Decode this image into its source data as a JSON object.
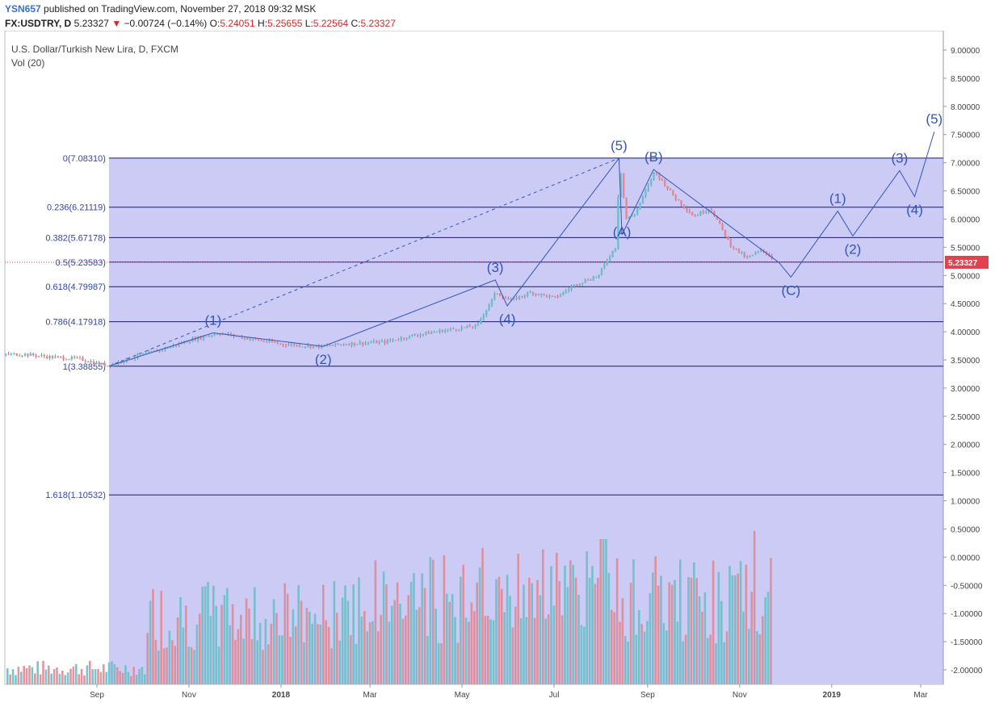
{
  "header": {
    "user": "YSN657",
    "published": "published on TradingView.com, November 27, 2018 09:32 MSK",
    "symbol": "FX:USDTRY, D",
    "last": "5.23327",
    "change": "−0.00724 (−0.14%)",
    "open_label": "O:",
    "open": "5.24051",
    "high_label": "H:",
    "high": "5.25655",
    "low_label": "L:",
    "low": "5.22564",
    "close_label": "C:",
    "close": "5.23327"
  },
  "legend": {
    "title": "U.S. Dollar/Turkish New Lira, D, FXCM",
    "volume": "Vol (20)"
  },
  "colors": {
    "up": "#6bbfc7",
    "down": "#e08a96",
    "fib_fill": "#c8c8f5",
    "fib_line": "#1a1a6e",
    "wave": "#3355bb",
    "price_tag": "#e0424f"
  },
  "chart_data": {
    "type": "candlestick",
    "x_ticks": [
      "Sep",
      "Nov",
      "2018",
      "Mar",
      "May",
      "Jul",
      "Sep",
      "Nov",
      "2019",
      "Mar"
    ],
    "y_ticks": [
      "9.00000",
      "8.50000",
      "8.00000",
      "7.50000",
      "7.00000",
      "6.50000",
      "6.00000",
      "5.50000",
      "5.00000",
      "4.50000",
      "4.00000",
      "3.50000",
      "3.00000",
      "2.50000",
      "2.00000",
      "1.50000",
      "1.00000",
      "0.50000",
      "0.00000",
      "-0.50000",
      "-1.00000",
      "-1.50000",
      "-2.00000"
    ],
    "ylim": [
      -2.2,
      9.0
    ],
    "last_price": "5.23327",
    "fib_levels": [
      {
        "label": "0(7.08310)",
        "value": 7.0831
      },
      {
        "label": "0.236(6.21119)",
        "value": 6.21119
      },
      {
        "label": "0.382(5.67178)",
        "value": 5.67178
      },
      {
        "label": "0.5(5.23583)",
        "value": 5.23583
      },
      {
        "label": "0.618(4.79987)",
        "value": 4.79987
      },
      {
        "label": "0.786(4.17918)",
        "value": 4.17918
      },
      {
        "label": "1(3.38855)",
        "value": 3.38855
      },
      {
        "label": "1.618(1.10532)",
        "value": 1.10532
      }
    ],
    "price_path": [
      [
        "2017-07-15",
        3.6
      ],
      [
        "2017-08-01",
        3.55
      ],
      [
        "2017-08-20",
        3.52
      ],
      [
        "2017-09-07",
        3.4
      ],
      [
        "2017-09-25",
        3.55
      ],
      [
        "2017-10-15",
        3.7
      ],
      [
        "2017-11-01",
        3.85
      ],
      [
        "2017-11-20",
        3.98
      ],
      [
        "2017-12-10",
        3.88
      ],
      [
        "2018-01-01",
        3.78
      ],
      [
        "2018-01-25",
        3.74
      ],
      [
        "2018-02-15",
        3.79
      ],
      [
        "2018-03-10",
        3.82
      ],
      [
        "2018-04-01",
        3.95
      ],
      [
        "2018-04-25",
        4.05
      ],
      [
        "2018-05-10",
        4.1
      ],
      [
        "2018-05-23",
        4.7
      ],
      [
        "2018-06-01",
        4.55
      ],
      [
        "2018-06-15",
        4.7
      ],
      [
        "2018-07-01",
        4.6
      ],
      [
        "2018-07-15",
        4.85
      ],
      [
        "2018-07-30",
        5.0
      ],
      [
        "2018-08-05",
        5.3
      ],
      [
        "2018-08-10",
        5.5
      ],
      [
        "2018-08-13",
        7.0
      ],
      [
        "2018-08-17",
        6.0
      ],
      [
        "2018-08-23",
        6.1
      ],
      [
        "2018-09-01",
        6.6
      ],
      [
        "2018-09-05",
        6.85
      ],
      [
        "2018-09-18",
        6.4
      ],
      [
        "2018-10-01",
        6.05
      ],
      [
        "2018-10-12",
        6.2
      ],
      [
        "2018-10-25",
        5.55
      ],
      [
        "2018-11-05",
        5.3
      ],
      [
        "2018-11-15",
        5.45
      ],
      [
        "2018-11-27",
        5.23
      ]
    ],
    "waves": [
      {
        "name": "impulse-1",
        "points": [
          [
            "2017-09-09",
            3.39
          ],
          [
            "2017-11-17",
            3.98
          ]
        ]
      },
      {
        "name": "impulse-2",
        "points": [
          [
            "2018-01-29",
            3.74
          ]
        ]
      },
      {
        "name": "impulse-3",
        "points": [
          [
            "2018-05-23",
            4.92
          ]
        ]
      },
      {
        "name": "impulse-4",
        "points": [
          [
            "2018-05-31",
            4.46
          ]
        ]
      },
      {
        "name": "impulse-5",
        "points": [
          [
            "2018-08-13",
            7.08
          ]
        ]
      }
    ],
    "wave_labels": [
      {
        "text": "(1)",
        "x": "2017-11-17",
        "y": 3.98
      },
      {
        "text": "(2)",
        "x": "2018-01-29",
        "y": 3.74
      },
      {
        "text": "(3)",
        "x": "2018-05-23",
        "y": 4.92
      },
      {
        "text": "(4)",
        "x": "2018-05-31",
        "y": 4.46
      },
      {
        "text": "(5)",
        "x": "2018-08-13",
        "y": 7.08
      },
      {
        "text": "(A)",
        "x": "2018-08-15",
        "y": 5.72
      },
      {
        "text": "(B)",
        "x": "2018-09-05",
        "y": 6.88
      },
      {
        "text": "(C)",
        "x": "2018-12-05",
        "y": 4.97
      },
      {
        "text": "(1)",
        "x": "2019-01-05",
        "y": 6.14
      },
      {
        "text": "(2)",
        "x": "2019-01-15",
        "y": 5.7
      },
      {
        "text": "(3)",
        "x": "2019-02-15",
        "y": 6.86
      },
      {
        "text": "(4)",
        "x": "2019-02-25",
        "y": 6.4
      },
      {
        "text": "(5)",
        "x": "2019-03-10",
        "y": 7.55
      }
    ],
    "projection": [
      [
        "2017-09-09",
        3.39
      ],
      [
        "2017-11-17",
        3.98
      ],
      [
        "2018-01-29",
        3.74
      ],
      [
        "2018-05-23",
        4.92
      ],
      [
        "2018-05-31",
        4.46
      ],
      [
        "2018-08-13",
        7.08
      ],
      [
        "2018-08-15",
        5.72
      ],
      [
        "2018-09-05",
        6.88
      ],
      [
        "2018-11-27",
        5.23
      ],
      [
        "2018-12-05",
        4.97
      ],
      [
        "2019-01-05",
        6.14
      ],
      [
        "2019-01-15",
        5.7
      ],
      [
        "2019-02-15",
        6.86
      ],
      [
        "2019-02-25",
        6.4
      ],
      [
        "2019-03-10",
        7.55
      ]
    ]
  }
}
